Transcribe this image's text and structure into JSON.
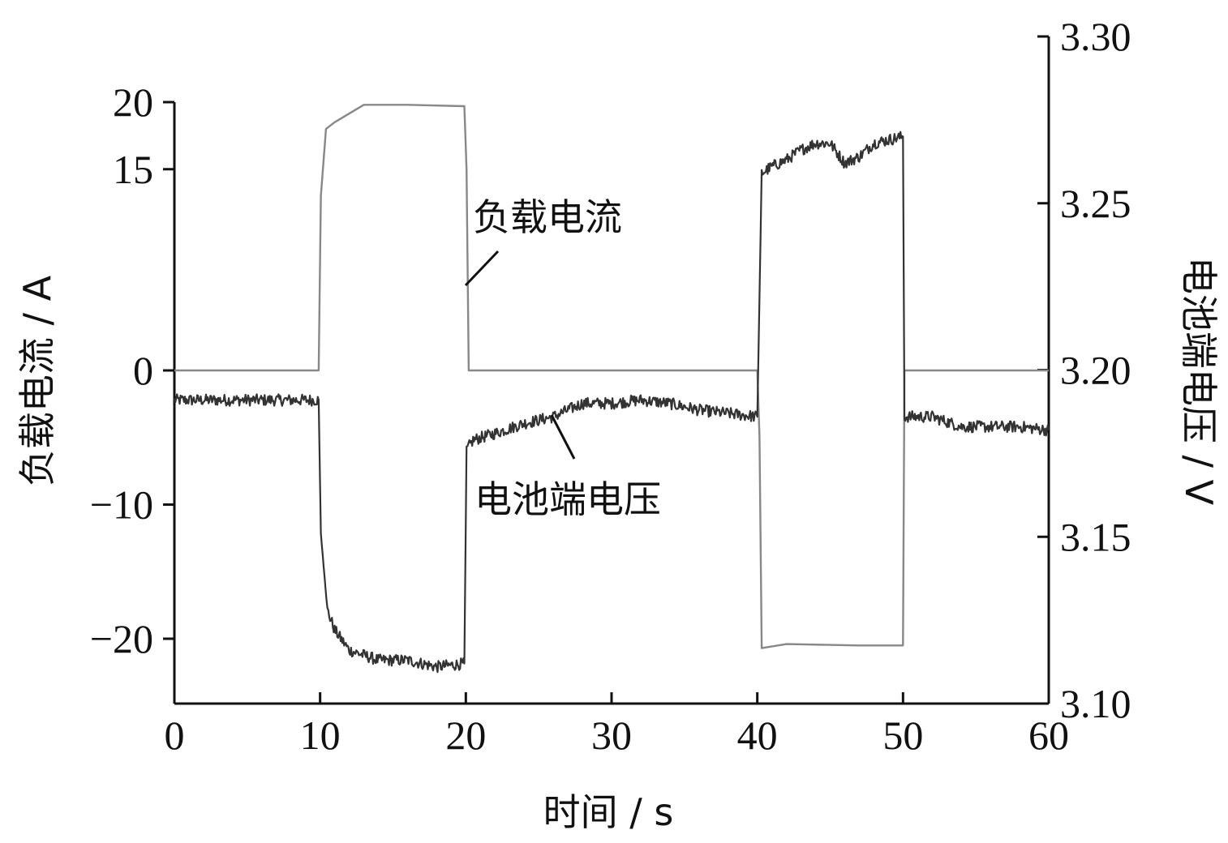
{
  "chart_data": {
    "type": "line",
    "xlabel": "时间 / s",
    "ylabel_left": "负载电流 / A",
    "ylabel_right": "电池端电压 / V",
    "xlim": [
      0,
      60
    ],
    "ylim_left": [
      -25,
      22
    ],
    "ylim_right": [
      3.1,
      3.3
    ],
    "x_ticks": [
      0,
      10,
      20,
      30,
      40,
      50,
      60
    ],
    "y_ticks_left": [
      -20,
      -10,
      0,
      15,
      20
    ],
    "y_ticks_left_labels": [
      "−20",
      "−10",
      "0",
      "15",
      "20"
    ],
    "y_ticks_right": [
      3.1,
      3.15,
      3.2,
      3.25,
      3.3
    ],
    "y_ticks_right_labels": [
      "3.10",
      "3.15",
      "3.20",
      "3.25",
      "3.30"
    ],
    "grid": false,
    "series": [
      {
        "name": "负载电流",
        "axis": "left",
        "color": "#888888",
        "x": [
          0,
          9.9,
          10.05,
          10.4,
          11.0,
          13.0,
          16.0,
          19.9,
          20.05,
          20.2,
          40.0,
          40.15,
          40.3,
          42.0,
          47.0,
          50.0,
          50.1,
          60.0
        ],
        "y": [
          0,
          0,
          13.0,
          18.0,
          18.5,
          19.8,
          19.8,
          19.7,
          15.0,
          0,
          0,
          -5.0,
          -20.7,
          -20.4,
          -20.5,
          -20.5,
          0,
          0
        ]
      },
      {
        "name": "电池端电压",
        "axis": "right",
        "color": "#333333",
        "x": [
          0,
          5,
          9.9,
          10.05,
          10.5,
          11.0,
          12.0,
          14.0,
          16.0,
          18.0,
          19.9,
          20.05,
          20.5,
          22.0,
          24.0,
          26.0,
          28.0,
          30.0,
          32.0,
          34.0,
          36.0,
          38.0,
          40.0,
          40.1,
          40.3,
          41.0,
          42.0,
          43.0,
          44.0,
          45.0,
          46.0,
          47.0,
          48.0,
          49.0,
          50.0,
          50.1,
          52.0,
          54.0,
          56.0,
          58.0,
          60.0
        ],
        "y": [
          3.191,
          3.191,
          3.191,
          3.151,
          3.128,
          3.122,
          3.116,
          3.113,
          3.113,
          3.111,
          3.112,
          3.176,
          3.179,
          3.181,
          3.184,
          3.186,
          3.19,
          3.19,
          3.191,
          3.19,
          3.188,
          3.187,
          3.186,
          3.21,
          3.259,
          3.261,
          3.263,
          3.266,
          3.268,
          3.268,
          3.262,
          3.264,
          3.268,
          3.269,
          3.27,
          3.186,
          3.186,
          3.183,
          3.183,
          3.183,
          3.182
        ]
      }
    ],
    "annotations": [
      {
        "text": "负载电流",
        "series": "负载电流",
        "at_x": 20.2,
        "at_y": 8.5,
        "axis": "left"
      },
      {
        "text": "电池端电压",
        "series": "电池端电压",
        "at_x": 26.0,
        "at_y": 3.186,
        "axis": "right"
      }
    ]
  }
}
